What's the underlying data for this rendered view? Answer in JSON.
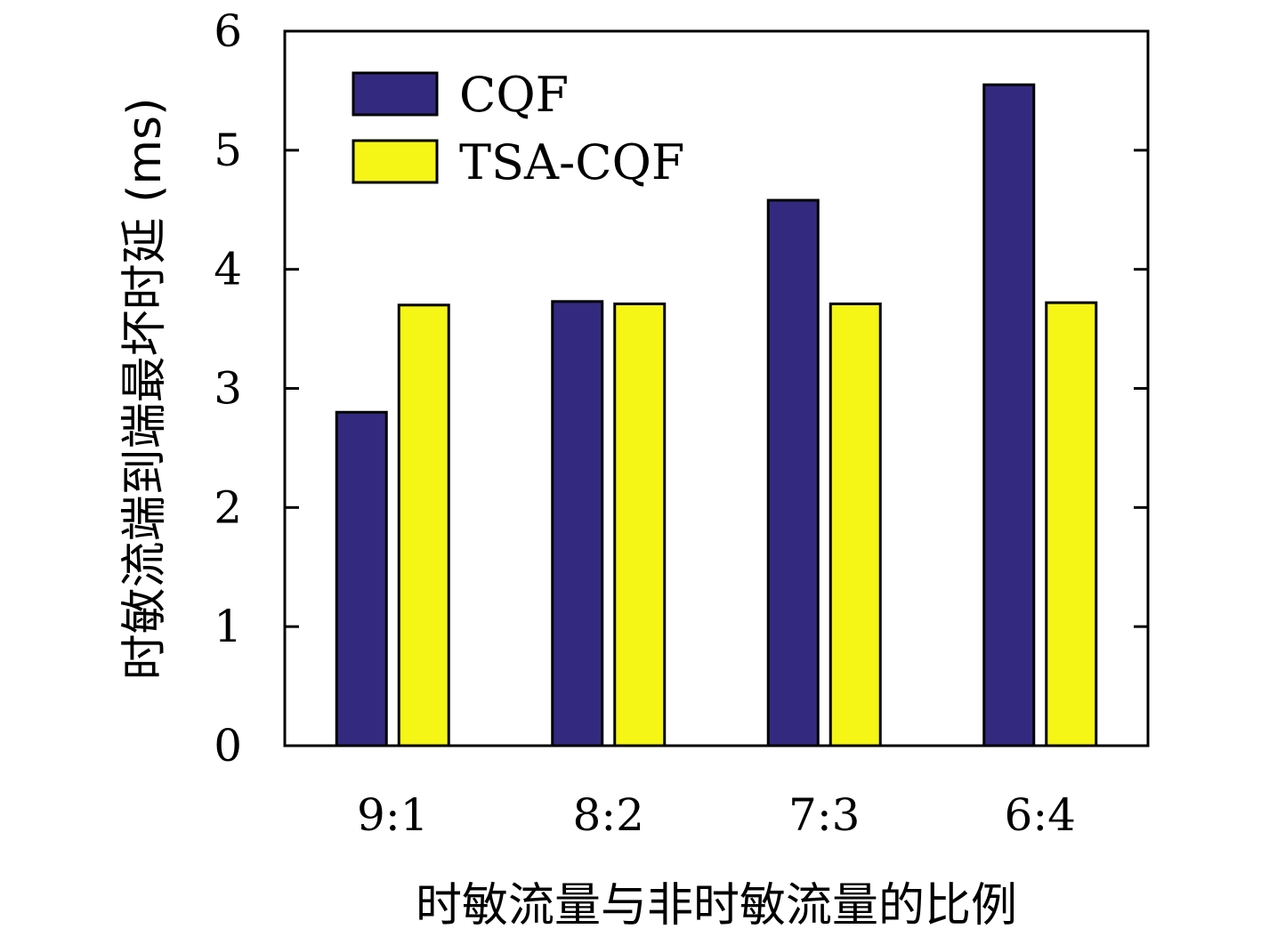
{
  "chart_data": {
    "type": "bar",
    "categories": [
      "9:1",
      "8:2",
      "7:3",
      "6:4"
    ],
    "series": [
      {
        "name": "CQF",
        "values": [
          2.8,
          3.73,
          4.58,
          5.55
        ],
        "color": "#332a80"
      },
      {
        "name": "TSA-CQF",
        "values": [
          3.7,
          3.71,
          3.71,
          3.72
        ],
        "color": "#f5f516"
      }
    ],
    "xlabel": "时敏流量与非时敏流量的比例",
    "ylabel": "时敏流端到端最坏时延 (ms)",
    "ylim": [
      0,
      6
    ],
    "yticks": [
      "0",
      "1",
      "2",
      "3",
      "4",
      "5",
      "6"
    ],
    "grid": false,
    "legend_position": "top-left"
  }
}
